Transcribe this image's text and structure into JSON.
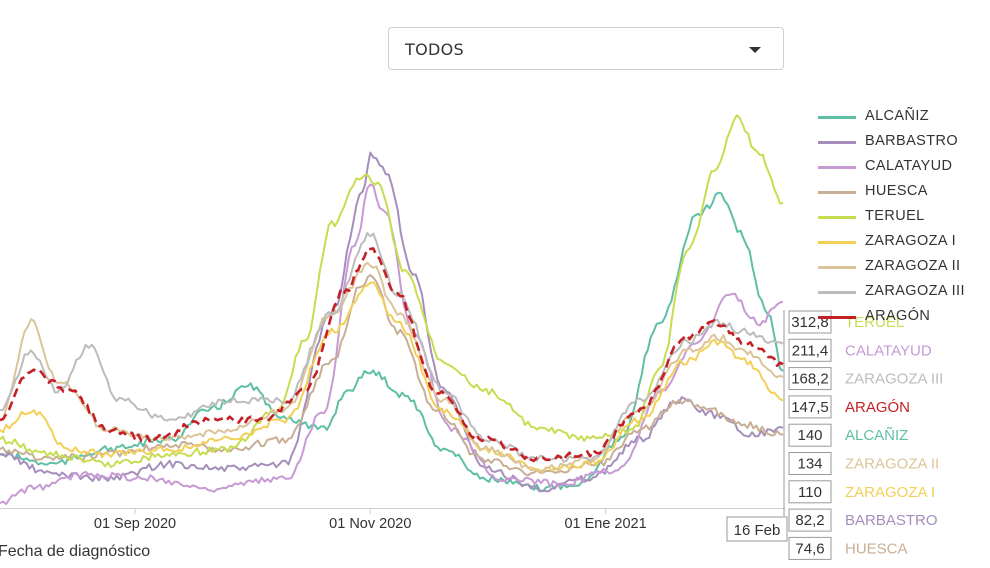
{
  "selector": {
    "value": "TODOS"
  },
  "colors": {
    "ALCAÑIZ": "#5ebfa4",
    "BARBASTRO": "#a58ebc",
    "CALATAYUD": "#c79ad4",
    "HUESCA": "#c7ae94",
    "TERUEL": "#c8dc52",
    "ZARAGOZA I": "#f2d058",
    "ZARAGOZA II": "#dcc49a",
    "ZARAGOZA III": "#bcbcbc",
    "ARAGÓN": "#c42026"
  },
  "legend": [
    "ALCAÑIZ",
    "BARBASTRO",
    "CALATAYUD",
    "HUESCA",
    "TERUEL",
    "ZARAGOZA I",
    "ZARAGOZA II",
    "ZARAGOZA III",
    "ARAGÓN"
  ],
  "chart_data": {
    "type": "line",
    "xlabel": "Fecha de diagnóstico",
    "x_ticks": [
      "01 Sep 2020",
      "01 Nov 2020",
      "01 Ene 2021"
    ],
    "hover_date": "16 Feb",
    "grid": false,
    "legend_position": "right",
    "series": [
      {
        "name": "ALCAÑIZ",
        "last": "140",
        "points": [
          [
            "2020-07-28",
            55
          ],
          [
            "2020-08-10",
            45
          ],
          [
            "2020-08-25",
            60
          ],
          [
            "2020-09-10",
            70
          ],
          [
            "2020-09-20",
            100
          ],
          [
            "2020-10-01",
            125
          ],
          [
            "2020-10-08",
            95
          ],
          [
            "2020-10-20",
            80
          ],
          [
            "2020-10-26",
            120
          ],
          [
            "2020-11-01",
            140
          ],
          [
            "2020-11-10",
            115
          ],
          [
            "2020-11-20",
            60
          ],
          [
            "2020-12-01",
            30
          ],
          [
            "2020-12-15",
            20
          ],
          [
            "2020-12-25",
            25
          ],
          [
            "2021-01-05",
            70
          ],
          [
            "2021-01-15",
            190
          ],
          [
            "2021-01-25",
            300
          ],
          [
            "2021-01-31",
            320
          ],
          [
            "2021-02-05",
            280
          ],
          [
            "2021-02-12",
            200
          ],
          [
            "2021-02-16",
            140
          ]
        ]
      },
      {
        "name": "BARBASTRO",
        "last": "82,2",
        "points": [
          [
            "2020-07-28",
            55
          ],
          [
            "2020-08-10",
            35
          ],
          [
            "2020-08-25",
            30
          ],
          [
            "2020-09-10",
            45
          ],
          [
            "2020-09-25",
            40
          ],
          [
            "2020-10-10",
            45
          ],
          [
            "2020-10-22",
            200
          ],
          [
            "2020-10-30",
            320
          ],
          [
            "2020-11-01",
            360
          ],
          [
            "2020-11-05",
            345
          ],
          [
            "2020-11-12",
            240
          ],
          [
            "2020-11-20",
            120
          ],
          [
            "2020-12-01",
            40
          ],
          [
            "2020-12-15",
            20
          ],
          [
            "2020-12-28",
            30
          ],
          [
            "2021-01-10",
            70
          ],
          [
            "2021-01-20",
            110
          ],
          [
            "2021-01-30",
            95
          ],
          [
            "2021-02-08",
            75
          ],
          [
            "2021-02-16",
            82
          ]
        ]
      },
      {
        "name": "CALATAYUD",
        "last": "211,4",
        "points": [
          [
            "2020-07-28",
            5
          ],
          [
            "2020-08-05",
            20
          ],
          [
            "2020-08-20",
            35
          ],
          [
            "2020-09-05",
            30
          ],
          [
            "2020-09-20",
            20
          ],
          [
            "2020-10-10",
            30
          ],
          [
            "2020-10-20",
            100
          ],
          [
            "2020-10-28",
            270
          ],
          [
            "2020-11-01",
            330
          ],
          [
            "2020-11-05",
            300
          ],
          [
            "2020-11-12",
            180
          ],
          [
            "2020-11-22",
            80
          ],
          [
            "2020-12-05",
            30
          ],
          [
            "2020-12-20",
            25
          ],
          [
            "2021-01-05",
            40
          ],
          [
            "2021-01-15",
            120
          ],
          [
            "2021-01-25",
            170
          ],
          [
            "2021-02-02",
            220
          ],
          [
            "2021-02-10",
            190
          ],
          [
            "2021-02-16",
            211
          ]
        ]
      },
      {
        "name": "HUESCA",
        "last": "74,6",
        "points": [
          [
            "2020-07-28",
            60
          ],
          [
            "2020-08-10",
            50
          ],
          [
            "2020-08-25",
            55
          ],
          [
            "2020-09-10",
            65
          ],
          [
            "2020-09-25",
            60
          ],
          [
            "2020-10-10",
            70
          ],
          [
            "2020-10-22",
            150
          ],
          [
            "2020-10-30",
            230
          ],
          [
            "2020-11-01",
            240
          ],
          [
            "2020-11-08",
            180
          ],
          [
            "2020-11-18",
            100
          ],
          [
            "2020-11-30",
            50
          ],
          [
            "2020-12-15",
            35
          ],
          [
            "2020-12-30",
            45
          ],
          [
            "2021-01-10",
            80
          ],
          [
            "2021-01-20",
            110
          ],
          [
            "2021-01-28",
            100
          ],
          [
            "2021-02-06",
            85
          ],
          [
            "2021-02-16",
            75
          ]
        ]
      },
      {
        "name": "TERUEL",
        "last": "312,8",
        "points": [
          [
            "2020-07-28",
            70
          ],
          [
            "2020-08-10",
            55
          ],
          [
            "2020-08-25",
            45
          ],
          [
            "2020-09-10",
            55
          ],
          [
            "2020-09-25",
            60
          ],
          [
            "2020-10-08",
            100
          ],
          [
            "2020-10-15",
            170
          ],
          [
            "2020-10-22",
            290
          ],
          [
            "2020-10-30",
            340
          ],
          [
            "2020-11-03",
            330
          ],
          [
            "2020-11-10",
            240
          ],
          [
            "2020-11-20",
            150
          ],
          [
            "2020-12-01",
            120
          ],
          [
            "2020-12-15",
            80
          ],
          [
            "2020-12-28",
            70
          ],
          [
            "2021-01-08",
            80
          ],
          [
            "2021-01-15",
            140
          ],
          [
            "2021-01-22",
            260
          ],
          [
            "2021-01-30",
            350
          ],
          [
            "2021-02-04",
            400
          ],
          [
            "2021-02-10",
            360
          ],
          [
            "2021-02-16",
            312
          ]
        ]
      },
      {
        "name": "ZARAGOZA I",
        "last": "110",
        "points": [
          [
            "2020-07-28",
            80
          ],
          [
            "2020-08-05",
            100
          ],
          [
            "2020-08-15",
            60
          ],
          [
            "2020-08-25",
            55
          ],
          [
            "2020-09-10",
            60
          ],
          [
            "2020-09-25",
            70
          ],
          [
            "2020-10-10",
            90
          ],
          [
            "2020-10-22",
            180
          ],
          [
            "2020-11-01",
            230
          ],
          [
            "2020-11-08",
            190
          ],
          [
            "2020-11-20",
            100
          ],
          [
            "2020-12-01",
            60
          ],
          [
            "2020-12-15",
            40
          ],
          [
            "2020-12-28",
            45
          ],
          [
            "2021-01-10",
            90
          ],
          [
            "2021-01-22",
            150
          ],
          [
            "2021-01-30",
            170
          ],
          [
            "2021-02-06",
            150
          ],
          [
            "2021-02-16",
            110
          ]
        ]
      },
      {
        "name": "ZARAGOZA II",
        "last": "134",
        "points": [
          [
            "2020-07-28",
            90
          ],
          [
            "2020-08-05",
            190
          ],
          [
            "2020-08-12",
            130
          ],
          [
            "2020-08-25",
            80
          ],
          [
            "2020-09-10",
            70
          ],
          [
            "2020-09-25",
            80
          ],
          [
            "2020-10-10",
            100
          ],
          [
            "2020-10-22",
            200
          ],
          [
            "2020-11-01",
            250
          ],
          [
            "2020-11-08",
            200
          ],
          [
            "2020-11-20",
            110
          ],
          [
            "2020-12-01",
            60
          ],
          [
            "2020-12-15",
            40
          ],
          [
            "2020-12-28",
            50
          ],
          [
            "2021-01-10",
            100
          ],
          [
            "2021-01-22",
            160
          ],
          [
            "2021-01-30",
            175
          ],
          [
            "2021-02-06",
            160
          ],
          [
            "2021-02-16",
            134
          ]
        ]
      },
      {
        "name": "ZARAGOZA III",
        "last": "168,2",
        "points": [
          [
            "2020-07-28",
            100
          ],
          [
            "2020-08-05",
            160
          ],
          [
            "2020-08-12",
            120
          ],
          [
            "2020-08-20",
            165
          ],
          [
            "2020-08-28",
            110
          ],
          [
            "2020-09-10",
            90
          ],
          [
            "2020-09-25",
            110
          ],
          [
            "2020-10-10",
            110
          ],
          [
            "2020-10-22",
            200
          ],
          [
            "2020-11-01",
            280
          ],
          [
            "2020-11-08",
            220
          ],
          [
            "2020-11-20",
            120
          ],
          [
            "2020-12-01",
            70
          ],
          [
            "2020-12-15",
            50
          ],
          [
            "2020-12-28",
            50
          ],
          [
            "2021-01-10",
            110
          ],
          [
            "2021-01-22",
            170
          ],
          [
            "2021-01-30",
            190
          ],
          [
            "2021-02-06",
            180
          ],
          [
            "2021-02-16",
            168
          ]
        ]
      },
      {
        "name": "ARAGÓN",
        "last": "147,5",
        "style": "dashed",
        "points": [
          [
            "2020-07-28",
            90
          ],
          [
            "2020-08-05",
            140
          ],
          [
            "2020-08-15",
            120
          ],
          [
            "2020-08-25",
            80
          ],
          [
            "2020-09-05",
            70
          ],
          [
            "2020-09-20",
            90
          ],
          [
            "2020-10-05",
            90
          ],
          [
            "2020-10-15",
            120
          ],
          [
            "2020-10-25",
            220
          ],
          [
            "2020-11-01",
            265
          ],
          [
            "2020-11-08",
            220
          ],
          [
            "2020-11-18",
            120
          ],
          [
            "2020-11-30",
            70
          ],
          [
            "2020-12-15",
            50
          ],
          [
            "2020-12-28",
            55
          ],
          [
            "2021-01-10",
            100
          ],
          [
            "2021-01-22",
            175
          ],
          [
            "2021-01-30",
            190
          ],
          [
            "2021-02-06",
            170
          ],
          [
            "2021-02-16",
            147
          ]
        ]
      }
    ]
  }
}
